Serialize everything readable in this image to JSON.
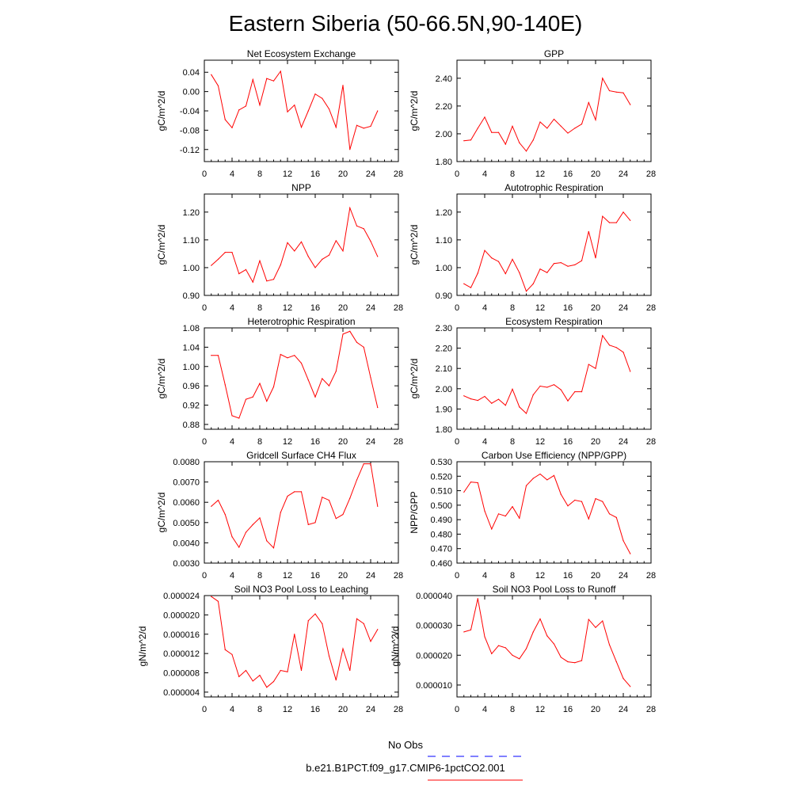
{
  "title": "Eastern Siberia (50-66.5N,90-140E)",
  "colors": {
    "model": "#ff0000",
    "obs": "#0000ff",
    "axis": "#000000"
  },
  "legend": {
    "obs_label": "No Obs",
    "model_label": "b.e21.B1PCT.f09_g17.CMIP6-1pctCO2.001"
  },
  "chart_data": [
    {
      "type": "line",
      "title": "Net Ecosystem Exchange",
      "xlabel": "",
      "ylabel": "gC/m^2/d",
      "xlim": [
        0,
        28
      ],
      "xticks": [
        0,
        4,
        8,
        12,
        16,
        20,
        24,
        28
      ],
      "ylim": [
        -0.145,
        0.065
      ],
      "yticks": [
        -0.12,
        -0.08,
        -0.04,
        0.0,
        0.04
      ],
      "ytick_labels": [
        "-0.12",
        "-0.08",
        "-0.04",
        "0.00",
        "0.04"
      ],
      "series": [
        {
          "x": [
            1,
            2,
            3,
            4,
            5,
            6,
            7,
            8,
            9,
            10,
            11,
            12,
            13,
            14,
            15,
            16,
            17,
            18,
            19,
            20,
            21,
            22,
            23,
            24,
            25
          ],
          "values": [
            0.035,
            0.012,
            -0.058,
            -0.075,
            -0.038,
            -0.03,
            0.025,
            -0.028,
            0.027,
            0.022,
            0.042,
            -0.042,
            -0.028,
            -0.074,
            -0.04,
            -0.005,
            -0.014,
            -0.036,
            -0.074,
            0.013,
            -0.12,
            -0.07,
            -0.076,
            -0.072,
            -0.04
          ]
        }
      ]
    },
    {
      "type": "line",
      "title": "GPP",
      "xlabel": "",
      "ylabel": "gC/m^2/d",
      "xlim": [
        0,
        28
      ],
      "xticks": [
        0,
        4,
        8,
        12,
        16,
        20,
        24,
        28
      ],
      "ylim": [
        1.8,
        2.53
      ],
      "yticks": [
        1.8,
        2.0,
        2.2,
        2.4
      ],
      "ytick_labels": [
        "1.80",
        "2.00",
        "2.20",
        "2.40"
      ],
      "series": [
        {
          "x": [
            1,
            2,
            3,
            4,
            5,
            6,
            7,
            8,
            9,
            10,
            11,
            12,
            13,
            14,
            15,
            16,
            17,
            18,
            19,
            20,
            21,
            22,
            23,
            24,
            25
          ],
          "values": [
            1.95,
            1.955,
            2.04,
            2.12,
            2.01,
            2.01,
            1.925,
            2.055,
            1.935,
            1.875,
            1.955,
            2.085,
            2.04,
            2.105,
            2.055,
            2.005,
            2.04,
            2.07,
            2.225,
            2.1,
            2.4,
            2.31,
            2.3,
            2.295,
            2.21
          ]
        }
      ]
    },
    {
      "type": "line",
      "title": "NPP",
      "xlabel": "",
      "ylabel": "gC/m^2/d",
      "xlim": [
        0,
        28
      ],
      "xticks": [
        0,
        4,
        8,
        12,
        16,
        20,
        24,
        28
      ],
      "ylim": [
        0.9,
        1.265
      ],
      "yticks": [
        0.9,
        1.0,
        1.1,
        1.2
      ],
      "ytick_labels": [
        "0.90",
        "1.00",
        "1.10",
        "1.20"
      ],
      "series": [
        {
          "x": [
            1,
            2,
            3,
            4,
            5,
            6,
            7,
            8,
            9,
            10,
            11,
            12,
            13,
            14,
            15,
            16,
            17,
            18,
            19,
            20,
            21,
            22,
            23,
            24,
            25
          ],
          "values": [
            1.008,
            1.03,
            1.055,
            1.055,
            0.978,
            0.993,
            0.948,
            1.025,
            0.952,
            0.958,
            1.01,
            1.09,
            1.06,
            1.093,
            1.04,
            1.0,
            1.03,
            1.045,
            1.097,
            1.06,
            1.215,
            1.15,
            1.14,
            1.095,
            1.04
          ]
        }
      ]
    },
    {
      "type": "line",
      "title": "Autotrophic Respiration",
      "xlabel": "",
      "ylabel": "gC/m^2/d",
      "xlim": [
        0,
        28
      ],
      "xticks": [
        0,
        4,
        8,
        12,
        16,
        20,
        24,
        28
      ],
      "ylim": [
        0.9,
        1.265
      ],
      "yticks": [
        0.9,
        1.0,
        1.1,
        1.2
      ],
      "ytick_labels": [
        "0.90",
        "1.00",
        "1.10",
        "1.20"
      ],
      "series": [
        {
          "x": [
            1,
            2,
            3,
            4,
            5,
            6,
            7,
            8,
            9,
            10,
            11,
            12,
            13,
            14,
            15,
            16,
            17,
            18,
            19,
            20,
            21,
            22,
            23,
            24,
            25
          ],
          "values": [
            0.942,
            0.928,
            0.98,
            1.062,
            1.035,
            1.022,
            0.978,
            1.03,
            0.982,
            0.915,
            0.942,
            0.995,
            0.982,
            1.015,
            1.018,
            1.005,
            1.01,
            1.025,
            1.13,
            1.035,
            1.185,
            1.162,
            1.162,
            1.2,
            1.17
          ]
        }
      ]
    },
    {
      "type": "line",
      "title": "Heterotrophic Respiration",
      "xlabel": "",
      "ylabel": "gC/m^2/d",
      "xlim": [
        0,
        28
      ],
      "xticks": [
        0,
        4,
        8,
        12,
        16,
        20,
        24,
        28
      ],
      "ylim": [
        0.87,
        1.08
      ],
      "yticks": [
        0.88,
        0.92,
        0.96,
        1.0,
        1.04,
        1.08
      ],
      "ytick_labels": [
        "0.88",
        "0.92",
        "0.96",
        "1.00",
        "1.04",
        "1.08"
      ],
      "series": [
        {
          "x": [
            1,
            2,
            3,
            4,
            5,
            6,
            7,
            8,
            9,
            10,
            11,
            12,
            13,
            14,
            15,
            16,
            17,
            18,
            19,
            20,
            21,
            22,
            23,
            24,
            25
          ],
          "values": [
            1.023,
            1.023,
            0.962,
            0.898,
            0.893,
            0.932,
            0.937,
            0.965,
            0.928,
            0.958,
            1.025,
            1.018,
            1.023,
            1.007,
            0.972,
            0.937,
            0.975,
            0.96,
            0.99,
            1.067,
            1.073,
            1.05,
            1.04,
            0.977,
            0.915
          ]
        }
      ]
    },
    {
      "type": "line",
      "title": "Ecosystem Respiration",
      "xlabel": "",
      "ylabel": "gC/m^2/d",
      "xlim": [
        0,
        28
      ],
      "xticks": [
        0,
        4,
        8,
        12,
        16,
        20,
        24,
        28
      ],
      "ylim": [
        1.8,
        2.3
      ],
      "yticks": [
        1.8,
        1.9,
        2.0,
        2.1,
        2.2,
        2.3
      ],
      "ytick_labels": [
        "1.80",
        "1.90",
        "2.00",
        "2.10",
        "2.20",
        "2.30"
      ],
      "series": [
        {
          "x": [
            1,
            2,
            3,
            4,
            5,
            6,
            7,
            8,
            9,
            10,
            11,
            12,
            13,
            14,
            15,
            16,
            17,
            18,
            19,
            20,
            21,
            22,
            23,
            24,
            25
          ],
          "values": [
            1.965,
            1.95,
            1.942,
            1.962,
            1.928,
            1.948,
            1.918,
            1.998,
            1.91,
            1.878,
            1.97,
            2.013,
            2.007,
            2.02,
            1.995,
            1.94,
            1.985,
            1.985,
            2.12,
            2.1,
            2.262,
            2.215,
            2.203,
            2.18,
            2.085
          ]
        }
      ]
    },
    {
      "type": "line",
      "title": "Gridcell Surface CH4 Flux",
      "xlabel": "",
      "ylabel": "gC/m^2/d",
      "xlim": [
        0,
        28
      ],
      "xticks": [
        0,
        4,
        8,
        12,
        16,
        20,
        24,
        28
      ],
      "ylim": [
        0.003,
        0.008
      ],
      "yticks": [
        0.003,
        0.004,
        0.005,
        0.006,
        0.007,
        0.008
      ],
      "ytick_labels": [
        "0.0030",
        "0.0040",
        "0.0050",
        "0.0060",
        "0.0070",
        "0.0080"
      ],
      "series": [
        {
          "x": [
            1,
            2,
            3,
            4,
            5,
            6,
            7,
            8,
            9,
            10,
            11,
            12,
            13,
            14,
            15,
            16,
            17,
            18,
            19,
            20,
            21,
            22,
            23,
            24,
            25
          ],
          "values": [
            0.0058,
            0.0061,
            0.0054,
            0.0043,
            0.00378,
            0.00452,
            0.0049,
            0.00523,
            0.0041,
            0.00375,
            0.0055,
            0.0063,
            0.00652,
            0.00652,
            0.0049,
            0.005,
            0.00625,
            0.0061,
            0.0052,
            0.0054,
            0.0062,
            0.0071,
            0.0079,
            0.0079,
            0.0058
          ]
        }
      ]
    },
    {
      "type": "line",
      "title": "Carbon Use Efficiency (NPP/GPP)",
      "xlabel": "",
      "ylabel": "NPP/GPP",
      "xlim": [
        0,
        28
      ],
      "xticks": [
        0,
        4,
        8,
        12,
        16,
        20,
        24,
        28
      ],
      "ylim": [
        0.46,
        0.53
      ],
      "yticks": [
        0.46,
        0.47,
        0.48,
        0.49,
        0.5,
        0.51,
        0.52,
        0.53
      ],
      "ytick_labels": [
        "0.460",
        "0.470",
        "0.480",
        "0.490",
        "0.500",
        "0.510",
        "0.520",
        "0.530"
      ],
      "series": [
        {
          "x": [
            1,
            2,
            3,
            4,
            5,
            6,
            7,
            8,
            9,
            10,
            11,
            12,
            13,
            14,
            15,
            16,
            17,
            18,
            19,
            20,
            21,
            22,
            23,
            24,
            25
          ],
          "values": [
            0.509,
            0.516,
            0.5155,
            0.496,
            0.4835,
            0.494,
            0.4925,
            0.499,
            0.491,
            0.5135,
            0.5185,
            0.5215,
            0.5175,
            0.5205,
            0.5075,
            0.4995,
            0.5035,
            0.5025,
            0.4905,
            0.5045,
            0.5025,
            0.494,
            0.4915,
            0.4755,
            0.4665
          ]
        }
      ]
    },
    {
      "type": "line",
      "title": "Soil NO3 Pool Loss to Leaching",
      "xlabel": "",
      "ylabel": "gN/m^2/d",
      "xlim": [
        0,
        28
      ],
      "xticks": [
        0,
        4,
        8,
        12,
        16,
        20,
        24,
        28
      ],
      "ylim": [
        3e-06,
        2.4e-05
      ],
      "yticks": [
        4e-06,
        8e-06,
        1.2e-05,
        1.6e-05,
        2e-05,
        2.4e-05
      ],
      "ytick_labels": [
        "0.000004",
        "0.000008",
        "0.000012",
        "0.000016",
        "0.000020",
        "0.000024"
      ],
      "series": [
        {
          "x": [
            1,
            2,
            3,
            4,
            5,
            6,
            7,
            8,
            9,
            10,
            11,
            12,
            13,
            14,
            15,
            16,
            17,
            18,
            19,
            20,
            21,
            22,
            23,
            24,
            25
          ],
          "values": [
            2.38e-05,
            2.28e-05,
            1.28e-05,
            1.18e-05,
            7.2e-06,
            8.5e-06,
            6.3e-06,
            7.5e-06,
            5e-06,
            6.2e-06,
            8.5e-06,
            8.2e-06,
            1.6e-05,
            8.5e-06,
            1.88e-05,
            2.02e-05,
            1.82e-05,
            1.15e-05,
            6.5e-06,
            1.3e-05,
            8.5e-06,
            1.92e-05,
            1.82e-05,
            1.45e-05,
            1.7e-05
          ]
        }
      ]
    },
    {
      "type": "line",
      "title": "Soil NO3 Pool Loss to Runoff",
      "xlabel": "",
      "ylabel": "gN/m^2/d",
      "xlim": [
        0,
        28
      ],
      "xticks": [
        0,
        4,
        8,
        12,
        16,
        20,
        24,
        28
      ],
      "ylim": [
        6e-06,
        4e-05
      ],
      "yticks": [
        1e-05,
        2e-05,
        3e-05,
        4e-05
      ],
      "ytick_labels": [
        "0.000010",
        "0.000020",
        "0.000030",
        "0.000040"
      ],
      "series": [
        {
          "x": [
            1,
            2,
            3,
            4,
            5,
            6,
            7,
            8,
            9,
            10,
            11,
            12,
            13,
            14,
            15,
            16,
            17,
            18,
            19,
            20,
            21,
            22,
            23,
            24,
            25
          ],
          "values": [
            2.78e-05,
            2.85e-05,
            3.9e-05,
            2.62e-05,
            2.05e-05,
            2.32e-05,
            2.25e-05,
            2e-05,
            1.88e-05,
            2.22e-05,
            2.78e-05,
            3.22e-05,
            2.65e-05,
            2.38e-05,
            1.93e-05,
            1.78e-05,
            1.75e-05,
            1.82e-05,
            3.2e-05,
            2.93e-05,
            3.15e-05,
            2.35e-05,
            1.78e-05,
            1.22e-05,
            9.5e-06
          ]
        }
      ]
    }
  ]
}
